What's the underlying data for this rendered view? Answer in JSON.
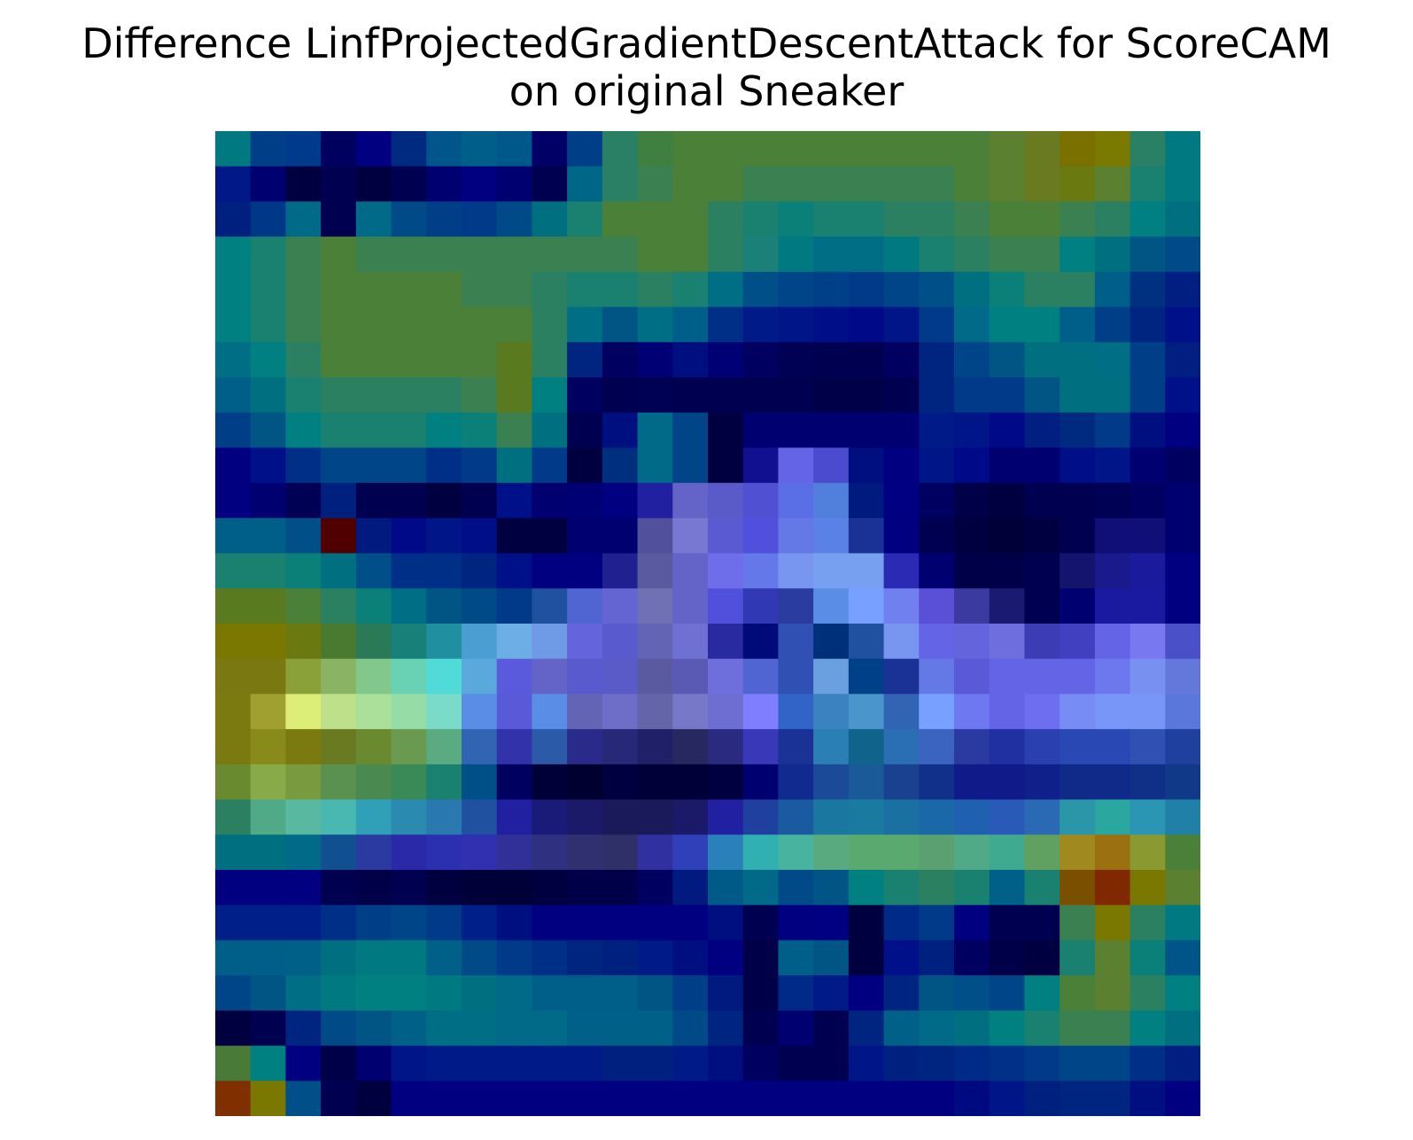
{
  "chart_data": {
    "type": "heatmap",
    "title_lines": [
      "Difference LinfProjectedGradientDescentAttack for ScoreCAM",
      "on original Sneaker"
    ],
    "rows": 28,
    "cols": 28,
    "axes_visible": false,
    "colorbar": false,
    "cells": [
      [
        "#007a80",
        "#003f88",
        "#003a8c",
        "#00005f",
        "#000080",
        "#002a80",
        "#00558a",
        "#005f8a",
        "#00588a",
        "#000066",
        "#003f88",
        "#2a8065",
        "#3f8040",
        "#4a8038",
        "#4a8038",
        "#4a8038",
        "#4a8038",
        "#4a8038",
        "#4a8038",
        "#4a8038",
        "#4a8038",
        "#4a8038",
        "#5a8030",
        "#6a7a20",
        "#7a7000",
        "#7a7a00",
        "#2a8065",
        "#007a80"
      ],
      [
        "#001888",
        "#000070",
        "#000040",
        "#000050",
        "#000040",
        "#000050",
        "#000070",
        "#000080",
        "#000070",
        "#000050",
        "#006688",
        "#2a8065",
        "#3a8050",
        "#4a8038",
        "#4a8038",
        "#3a8050",
        "#3a8050",
        "#3a8050",
        "#3a8050",
        "#3a8050",
        "#3a8050",
        "#4a8038",
        "#5a8030",
        "#6a7a20",
        "#6a7a10",
        "#5a8030",
        "#1a8070",
        "#007a80"
      ],
      [
        "#002080",
        "#003888",
        "#006a88",
        "#000050",
        "#006a88",
        "#004a88",
        "#003f88",
        "#003a88",
        "#004a88",
        "#007080",
        "#1a8070",
        "#4a8038",
        "#4a8038",
        "#4a8038",
        "#2a8060",
        "#1a8070",
        "#0a8078",
        "#1a8070",
        "#1a8070",
        "#2a8060",
        "#2a8060",
        "#3a8050",
        "#4a8038",
        "#4a8038",
        "#3a8050",
        "#2a8060",
        "#008080",
        "#007080"
      ],
      [
        "#008080",
        "#1a8070",
        "#3a8050",
        "#4a8038",
        "#3a8050",
        "#3a8050",
        "#3a8050",
        "#3a8050",
        "#3a8050",
        "#3a8050",
        "#3a8050",
        "#3a8050",
        "#4a8038",
        "#4a8038",
        "#2a8060",
        "#1a8078",
        "#007a80",
        "#006f85",
        "#006f85",
        "#007a80",
        "#1a8070",
        "#2a8060",
        "#3a8050",
        "#3a8050",
        "#008080",
        "#007080",
        "#005585",
        "#004a88"
      ],
      [
        "#008080",
        "#1a8070",
        "#3a8050",
        "#4a8038",
        "#4a8038",
        "#4a8038",
        "#4a8038",
        "#3a8050",
        "#3a8050",
        "#2a8060",
        "#1a8070",
        "#1a8070",
        "#2a8060",
        "#1a8070",
        "#006f85",
        "#004f88",
        "#004588",
        "#004088",
        "#003a88",
        "#004588",
        "#004f88",
        "#007080",
        "#0a8078",
        "#2a8060",
        "#2a8060",
        "#005f88",
        "#003080",
        "#001f80"
      ],
      [
        "#008080",
        "#1a8070",
        "#3a8050",
        "#4a8038",
        "#4a8038",
        "#4a8038",
        "#4a8038",
        "#4a8038",
        "#4a8038",
        "#2a8060",
        "#006f85",
        "#005585",
        "#006f85",
        "#005f88",
        "#002f88",
        "#001a88",
        "#001588",
        "#000f88",
        "#000a88",
        "#001588",
        "#003a88",
        "#006a88",
        "#008080",
        "#008080",
        "#005f88",
        "#003f88",
        "#002580",
        "#001088"
      ],
      [
        "#006f85",
        "#008080",
        "#2a8060",
        "#4a8038",
        "#4a8038",
        "#4a8038",
        "#4a8038",
        "#4a8038",
        "#5a7a20",
        "#2a8060",
        "#002580",
        "#000060",
        "#000075",
        "#000f80",
        "#000075",
        "#000060",
        "#000055",
        "#000050",
        "#000050",
        "#000060",
        "#002580",
        "#004588",
        "#005585",
        "#007080",
        "#007080",
        "#006f85",
        "#003f88",
        "#001f80"
      ],
      [
        "#005f88",
        "#007080",
        "#1a8070",
        "#2a8060",
        "#2a8060",
        "#2a8060",
        "#2a8060",
        "#3a8050",
        "#5a7a20",
        "#008080",
        "#000060",
        "#000050",
        "#000055",
        "#000050",
        "#000050",
        "#000050",
        "#000050",
        "#000048",
        "#000048",
        "#000050",
        "#002580",
        "#003a88",
        "#003a88",
        "#005585",
        "#007080",
        "#007080",
        "#003f88",
        "#001088"
      ],
      [
        "#003f88",
        "#005585",
        "#008080",
        "#1a8070",
        "#1a8070",
        "#1a8070",
        "#008080",
        "#0a8078",
        "#3a8050",
        "#007080",
        "#000050",
        "#000f80",
        "#006a88",
        "#004588",
        "#000040",
        "#000070",
        "#000070",
        "#000070",
        "#000070",
        "#000070",
        "#001a88",
        "#001588",
        "#000a88",
        "#001f80",
        "#002a80",
        "#003a88",
        "#000f80",
        "#000080"
      ],
      [
        "#000080",
        "#001088",
        "#002f88",
        "#004588",
        "#004588",
        "#004588",
        "#002f88",
        "#003a88",
        "#007080",
        "#003a88",
        "#000040",
        "#002f80",
        "#006a88",
        "#004588",
        "#000040",
        "#101090",
        "#6464e6",
        "#4b4bcf",
        "#000f80",
        "#000080",
        "#001588",
        "#000a88",
        "#000070",
        "#000070",
        "#000f88",
        "#001588",
        "#000070",
        "#000060"
      ],
      [
        "#000080",
        "#000070",
        "#000055",
        "#002080",
        "#000050",
        "#000050",
        "#000040",
        "#000050",
        "#001088",
        "#000070",
        "#000075",
        "#000080",
        "#2020a0",
        "#6464c8",
        "#5a5ac8",
        "#5050d2",
        "#5a6ee6",
        "#5080dc",
        "#001a80",
        "#000080",
        "#000060",
        "#000048",
        "#000040",
        "#000050",
        "#000050",
        "#000055",
        "#000060",
        "#000070"
      ],
      [
        "#005f88",
        "#005f88",
        "#004f88",
        "#500000",
        "#001a80",
        "#000a88",
        "#001588",
        "#000f88",
        "#000040",
        "#000040",
        "#000070",
        "#000070",
        "#50509c",
        "#7878d2",
        "#5a5ad2",
        "#5050dc",
        "#6478e6",
        "#5a82e6",
        "#1a3296",
        "#000080",
        "#000050",
        "#000040",
        "#000038",
        "#000040",
        "#000050",
        "#100f78",
        "#100f78",
        "#000070"
      ],
      [
        "#1a8070",
        "#1a8070",
        "#0a8078",
        "#007080",
        "#004f88",
        "#002f88",
        "#002f88",
        "#002580",
        "#001088",
        "#000080",
        "#000080",
        "#202090",
        "#5a5aa0",
        "#6464c8",
        "#6e6eea",
        "#6478ea",
        "#7896f0",
        "#78a0f0",
        "#78a0f0",
        "#2a2ab4",
        "#000070",
        "#000048",
        "#000048",
        "#000050",
        "#14146e",
        "#1a1a8c",
        "#1a1a9c",
        "#000080"
      ],
      [
        "#5a7a20",
        "#5a7a20",
        "#4a8038",
        "#2a8060",
        "#0a8078",
        "#006f85",
        "#005585",
        "#004a88",
        "#003a88",
        "#2050a0",
        "#5064d2",
        "#6464d2",
        "#7070b4",
        "#6464c8",
        "#5050dc",
        "#3038b4",
        "#2a3ca0",
        "#5a8ee6",
        "#78a0ff",
        "#7080ee",
        "#5a50d8",
        "#3a3aa0",
        "#1a1a70",
        "#000050",
        "#000070",
        "#1a1aa0",
        "#1a1aa0",
        "#000080"
      ],
      [
        "#7a7800",
        "#7a7800",
        "#6a7a10",
        "#4a7a30",
        "#2a7a58",
        "#188078",
        "#208fa0",
        "#4a9ed2",
        "#6eaee6",
        "#6e9ae6",
        "#6464dc",
        "#5a5acf",
        "#6464b4",
        "#7070d2",
        "#2a2aa0",
        "#000a78",
        "#3050b4",
        "#00307a",
        "#2050a0",
        "#7896f0",
        "#6464e6",
        "#6464dc",
        "#6e6ede",
        "#3c3cb4",
        "#4040c0",
        "#6464e6",
        "#7878f0",
        "#4a50c8"
      ],
      [
        "#7a7810",
        "#7a7810",
        "#8aa038",
        "#8ab464",
        "#82c88c",
        "#6ad2b4",
        "#50dad8",
        "#5aa8dc",
        "#5a5adc",
        "#6464c8",
        "#5a5acf",
        "#5a5ac8",
        "#5a5aa0",
        "#5a5ab4",
        "#6e6edc",
        "#5064d2",
        "#3050b4",
        "#6aa0e0",
        "#004088",
        "#1a3296",
        "#6478e6",
        "#5a5ad8",
        "#6464e6",
        "#6464e6",
        "#6464e6",
        "#6e78ee",
        "#7890f0",
        "#6478dc"
      ],
      [
        "#7a7a10",
        "#a0a030",
        "#dced78",
        "#bee08a",
        "#aae09a",
        "#96dca6",
        "#7adcc8",
        "#5a8ee6",
        "#5a5ad8",
        "#5a8ee6",
        "#6464b4",
        "#6e6ec8",
        "#6464a8",
        "#7878c8",
        "#6e6ed2",
        "#7e7efe",
        "#3264c8",
        "#3a82c0",
        "#4a96cc",
        "#3264b4",
        "#78a0ff",
        "#6e78f0",
        "#6464e6",
        "#6e6ef0",
        "#788cf5",
        "#7896f8",
        "#7896f8",
        "#5a78dc"
      ],
      [
        "#7a7a10",
        "#888a1a",
        "#7a7a10",
        "#6a7a20",
        "#6a8a30",
        "#6a9a50",
        "#5aaa82",
        "#3264b4",
        "#3232aa",
        "#2a5aa8",
        "#2a2a8a",
        "#282878",
        "#202068",
        "#282860",
        "#2a2a80",
        "#3838b8",
        "#1a3296",
        "#2a80b4",
        "#10648c",
        "#2a6eb4",
        "#3a64c0",
        "#2a3aa0",
        "#2030a0",
        "#2a40b0",
        "#2a48b4",
        "#2a48b4",
        "#3050b4",
        "#2040a0"
      ],
      [
        "#6a8a30",
        "#88aa48",
        "#7a9a40",
        "#5a9050",
        "#4a8a50",
        "#3a8a58",
        "#1a8070",
        "#005088",
        "#000060",
        "#000038",
        "#000030",
        "#000040",
        "#000038",
        "#000038",
        "#000040",
        "#000070",
        "#102a90",
        "#1a4a98",
        "#1a5a98",
        "#1a4090",
        "#10308a",
        "#101a88",
        "#101a88",
        "#10208a",
        "#102a8a",
        "#102a8a",
        "#103088",
        "#103a88"
      ],
      [
        "#2a8060",
        "#50aa88",
        "#58b8a0",
        "#48b8b0",
        "#30a0b8",
        "#2a8ab0",
        "#2a78b0",
        "#2050a0",
        "#2020a0",
        "#1a1a78",
        "#1a1a68",
        "#1a1a5a",
        "#1a1a5a",
        "#1a1a68",
        "#2020a0",
        "#2040a0",
        "#1a5aa0",
        "#1a78a0",
        "#1a7aa0",
        "#1a70a0",
        "#1a68a8",
        "#2060b0",
        "#2a5ab8",
        "#2a6ab4",
        "#2a96a8",
        "#2aa8a0",
        "#2a96b4",
        "#2080a8"
      ],
      [
        "#007080",
        "#007080",
        "#006a88",
        "#105090",
        "#2a3aa0",
        "#2a2aa8",
        "#2a30b0",
        "#3030b0",
        "#303098",
        "#303080",
        "#303070",
        "#303068",
        "#3030a0",
        "#3040b8",
        "#2a80b8",
        "#30b0b0",
        "#48b4a0",
        "#5aaa80",
        "#5aaa70",
        "#5aaa70",
        "#5aa070",
        "#50aa88",
        "#40aa90",
        "#60a060",
        "#a08a20",
        "#9a7010",
        "#8a9a30",
        "#4a8038"
      ],
      [
        "#000080",
        "#000080",
        "#000080",
        "#000050",
        "#000048",
        "#000050",
        "#000040",
        "#000038",
        "#000038",
        "#000040",
        "#000048",
        "#000048",
        "#000060",
        "#001a80",
        "#005a88",
        "#006a88",
        "#004a88",
        "#005585",
        "#008080",
        "#1a8070",
        "#2a8060",
        "#1a8070",
        "#006088",
        "#1a8070",
        "#7a5000",
        "#802800",
        "#7a7800",
        "#5a8030"
      ],
      [
        "#001f88",
        "#001f88",
        "#001f88",
        "#002f88",
        "#003f88",
        "#004588",
        "#003a88",
        "#001f88",
        "#000f80",
        "#000080",
        "#000080",
        "#000080",
        "#000080",
        "#000080",
        "#000f80",
        "#000050",
        "#000080",
        "#000080",
        "#000040",
        "#002a88",
        "#003a88",
        "#000080",
        "#000050",
        "#000050",
        "#3a8050",
        "#7a7800",
        "#2a8060",
        "#007a80"
      ],
      [
        "#005f88",
        "#005f88",
        "#006088",
        "#007080",
        "#007a80",
        "#007a80",
        "#006088",
        "#004a88",
        "#003a88",
        "#002f88",
        "#002580",
        "#002080",
        "#001a88",
        "#000f80",
        "#000080",
        "#000048",
        "#005f88",
        "#005585",
        "#000040",
        "#001088",
        "#002080",
        "#000060",
        "#000048",
        "#000040",
        "#1a8070",
        "#5a8030",
        "#0a8078",
        "#005588"
      ],
      [
        "#004588",
        "#005585",
        "#006f85",
        "#007a80",
        "#008080",
        "#008080",
        "#007a80",
        "#007080",
        "#006a88",
        "#005f88",
        "#005f88",
        "#005f88",
        "#005585",
        "#003f88",
        "#001a80",
        "#000048",
        "#002a88",
        "#001a88",
        "#000080",
        "#002580",
        "#005585",
        "#004f88",
        "#004588",
        "#008080",
        "#4a8038",
        "#5a8030",
        "#2a8060",
        "#008080"
      ],
      [
        "#000040",
        "#000050",
        "#002580",
        "#004a88",
        "#005585",
        "#006088",
        "#006f85",
        "#006f85",
        "#006a88",
        "#006a88",
        "#006088",
        "#006088",
        "#006088",
        "#004a88",
        "#002580",
        "#000050",
        "#000070",
        "#000050",
        "#002580",
        "#006088",
        "#006a88",
        "#007080",
        "#008080",
        "#1a8070",
        "#3a8050",
        "#3a8050",
        "#008080",
        "#007080"
      ],
      [
        "#4a7a38",
        "#008080",
        "#000080",
        "#000048",
        "#000070",
        "#001588",
        "#001a88",
        "#001a88",
        "#001a88",
        "#001a88",
        "#001a88",
        "#002080",
        "#002080",
        "#001a88",
        "#000f80",
        "#000060",
        "#000050",
        "#000050",
        "#001588",
        "#002080",
        "#002580",
        "#002a88",
        "#003088",
        "#003a88",
        "#004588",
        "#004588",
        "#002f88",
        "#001f80"
      ],
      [
        "#803000",
        "#7a7800",
        "#004f88",
        "#000050",
        "#000040",
        "#000080",
        "#000080",
        "#000080",
        "#000080",
        "#000080",
        "#000080",
        "#000080",
        "#000080",
        "#000080",
        "#000080",
        "#000080",
        "#000080",
        "#000080",
        "#000080",
        "#000080",
        "#000080",
        "#000a80",
        "#001588",
        "#002080",
        "#002580",
        "#002580",
        "#000f80",
        "#000080"
      ]
    ]
  }
}
